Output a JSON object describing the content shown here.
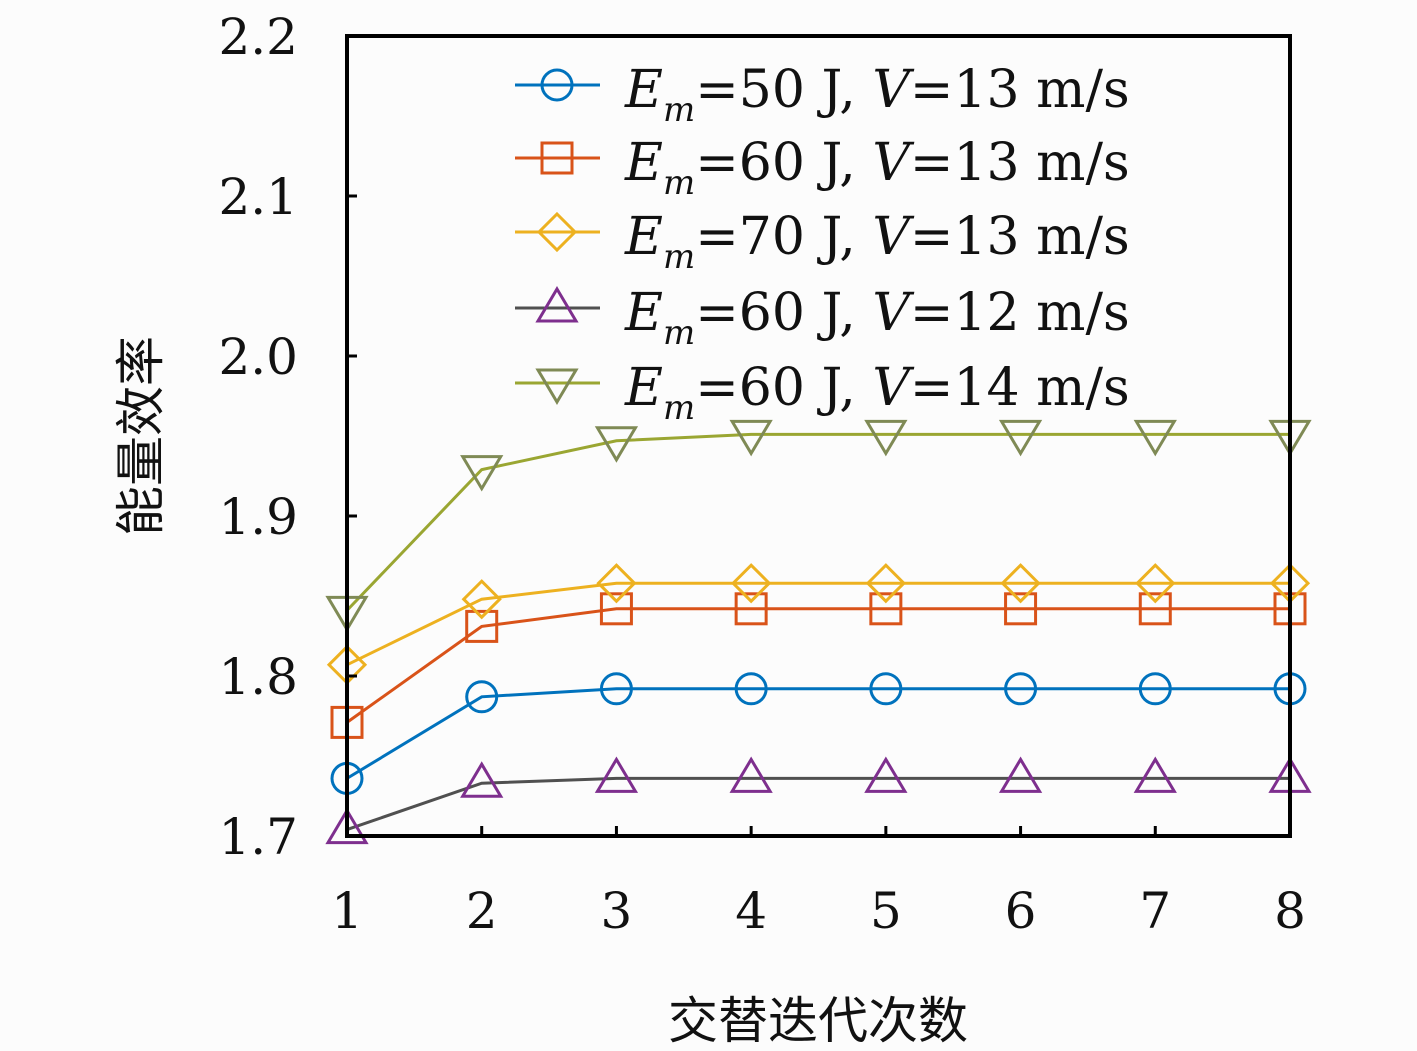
{
  "chart_data": {
    "type": "line",
    "title": "",
    "xlabel": "交替迭代次数",
    "ylabel": "能量效率",
    "x": [
      1,
      2,
      3,
      4,
      5,
      6,
      7,
      8
    ],
    "xlim": [
      1,
      8
    ],
    "ylim": [
      1.7,
      2.2
    ],
    "xticks": [
      "1",
      "2",
      "3",
      "4",
      "5",
      "6",
      "7",
      "8"
    ],
    "yticks": [
      "1.7",
      "1.8",
      "1.9",
      "2.0",
      "2.1",
      "2.2"
    ],
    "grid": false,
    "legend_position": "top-right",
    "series": [
      {
        "name": "Em=50 J, V=13 m/s",
        "e": "E",
        "sub": "m",
        "erest": "=50 J, ",
        "v": "V",
        "vrest": "=13 m/s",
        "marker": "circle",
        "color": "#0072BD",
        "line_color": "#0072BD",
        "values": [
          1.736,
          1.787,
          1.792,
          1.792,
          1.792,
          1.792,
          1.792,
          1.792
        ]
      },
      {
        "name": "Em=60 J, V=13 m/s",
        "e": "E",
        "sub": "m",
        "erest": "=60 J, ",
        "v": "V",
        "vrest": "=13 m/s",
        "marker": "square",
        "color": "#D95319",
        "line_color": "#D95319",
        "values": [
          1.771,
          1.831,
          1.842,
          1.842,
          1.842,
          1.842,
          1.842,
          1.842
        ]
      },
      {
        "name": "Em=70 J, V=13 m/s",
        "e": "E",
        "sub": "m",
        "erest": "=70 J, ",
        "v": "V",
        "vrest": "=13 m/s",
        "marker": "diamond",
        "color": "#EDB120",
        "line_color": "#EDB120",
        "values": [
          1.807,
          1.848,
          1.858,
          1.858,
          1.858,
          1.858,
          1.858,
          1.858
        ]
      },
      {
        "name": "Em=60 J, V=12 m/s",
        "e": "E",
        "sub": "m",
        "erest": "=60 J, ",
        "v": "V",
        "vrest": "=12 m/s",
        "marker": "triangle-up",
        "color": "#7E2F8E",
        "line_color": "#505050",
        "values": [
          1.704,
          1.733,
          1.736,
          1.736,
          1.736,
          1.736,
          1.736,
          1.736
        ]
      },
      {
        "name": "Em=60 J, V=14 m/s",
        "e": "E",
        "sub": "m",
        "erest": "=60 J, ",
        "v": "V",
        "vrest": "=14 m/s",
        "marker": "triangle-down",
        "color": "#7F8A55",
        "line_color": "#9AA632",
        "values": [
          1.841,
          1.929,
          1.947,
          1.951,
          1.951,
          1.951,
          1.951,
          1.951
        ]
      }
    ]
  }
}
